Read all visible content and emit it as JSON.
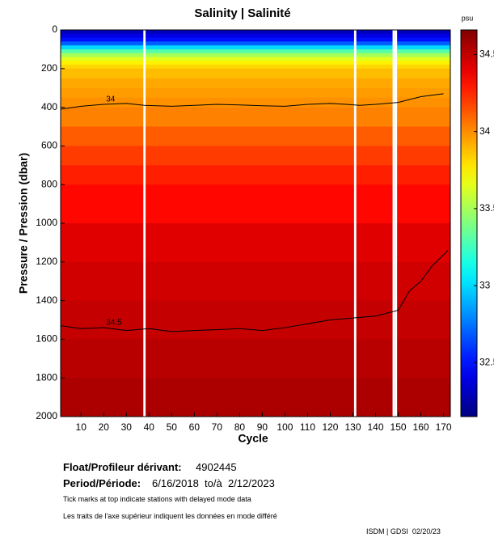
{
  "chart_data": {
    "type": "heatmap",
    "title": "Salinity | Salinité",
    "x_label": "Cycle",
    "y_label": "Pressure / Pression (dbar)",
    "colorbar_label": "psu",
    "colormap": "jet",
    "xlim": [
      1,
      173
    ],
    "xticks": [
      10,
      20,
      30,
      40,
      50,
      60,
      70,
      80,
      90,
      100,
      110,
      120,
      130,
      140,
      150,
      160,
      170
    ],
    "ylim": [
      0,
      2000
    ],
    "yticks": [
      0,
      200,
      400,
      600,
      800,
      1000,
      1200,
      1400,
      1600,
      1800,
      2000
    ],
    "y_inverted": true,
    "clim": [
      32.15,
      34.66
    ],
    "cticks": [
      32.5,
      33,
      33.5,
      34,
      34.5
    ],
    "pressure": [
      0,
      20,
      40,
      60,
      80,
      100,
      120,
      140,
      160,
      180,
      200,
      250,
      300,
      350,
      400,
      500,
      600,
      700,
      800,
      1000,
      1200,
      1400,
      1600,
      1800,
      2000
    ],
    "salinity": [
      32.3,
      32.4,
      32.5,
      32.7,
      33.0,
      33.3,
      33.5,
      33.65,
      33.75,
      33.82,
      33.88,
      33.93,
      33.96,
      33.99,
      34.03,
      34.12,
      34.2,
      34.27,
      34.33,
      34.42,
      34.46,
      34.49,
      34.52,
      34.55,
      34.58
    ],
    "gaps": [
      38,
      131,
      148,
      149
    ],
    "series": [
      {
        "name": "34",
        "color": "#000000",
        "x": [
          1,
          10,
          20,
          30,
          38,
          50,
          60,
          70,
          80,
          90,
          100,
          110,
          120,
          127,
          133,
          140,
          150,
          160,
          170
        ],
        "values": [
          410,
          395,
          385,
          380,
          390,
          395,
          390,
          385,
          388,
          392,
          395,
          385,
          380,
          385,
          390,
          385,
          375,
          345,
          330
        ]
      },
      {
        "name": "34.5",
        "color": "#000000",
        "x": [
          1,
          10,
          20,
          30,
          40,
          50,
          60,
          70,
          80,
          90,
          100,
          110,
          120,
          130,
          140,
          150,
          155,
          160,
          165,
          172
        ],
        "values": [
          1530,
          1545,
          1540,
          1555,
          1545,
          1560,
          1555,
          1550,
          1545,
          1555,
          1540,
          1520,
          1500,
          1490,
          1480,
          1450,
          1350,
          1300,
          1220,
          1140
        ]
      }
    ]
  },
  "footer": {
    "float_label": "Float/Profileur dérivant:",
    "float_id": "4902445",
    "period_label": "Period/Période:",
    "period": "6/16/2018  to/à  2/12/2023",
    "note_en": "Tick marks at top indicate stations with delayed mode data",
    "note_fr": "Les traits de l'axe supérieur indiquent les données en mode différé",
    "credit": "ISDM | GDSI  02/20/23"
  }
}
